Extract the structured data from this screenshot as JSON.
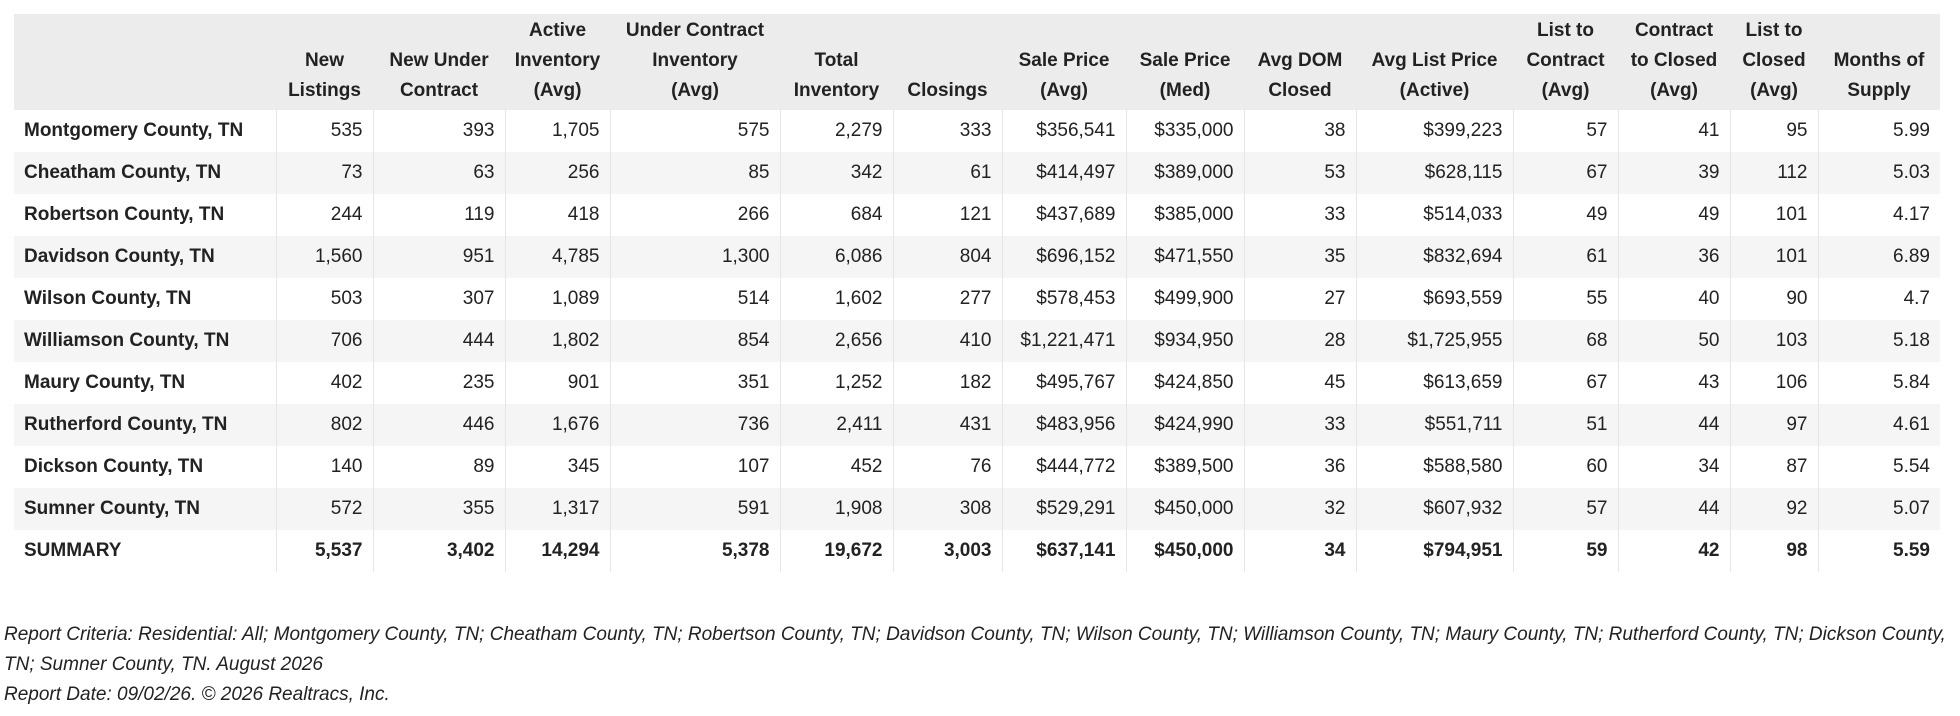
{
  "table": {
    "headers": [
      "",
      "New\nListings",
      "New Under\nContract",
      "Active\nInventory\n(Avg)",
      "Under Contract\nInventory\n(Avg)",
      "Total\nInventory",
      "Closings",
      "Sale Price\n(Avg)",
      "Sale Price\n(Med)",
      "Avg DOM\nClosed",
      "Avg List Price\n(Active)",
      "List to\nContract\n(Avg)",
      "Contract\nto Closed\n(Avg)",
      "List to\nClosed\n(Avg)",
      "Months of\nSupply"
    ],
    "rows": [
      [
        "Montgomery County, TN",
        "535",
        "393",
        "1,705",
        "575",
        "2,279",
        "333",
        "$356,541",
        "$335,000",
        "38",
        "$399,223",
        "57",
        "41",
        "95",
        "5.99"
      ],
      [
        "Cheatham County, TN",
        "73",
        "63",
        "256",
        "85",
        "342",
        "61",
        "$414,497",
        "$389,000",
        "53",
        "$628,115",
        "67",
        "39",
        "112",
        "5.03"
      ],
      [
        "Robertson County, TN",
        "244",
        "119",
        "418",
        "266",
        "684",
        "121",
        "$437,689",
        "$385,000",
        "33",
        "$514,033",
        "49",
        "49",
        "101",
        "4.17"
      ],
      [
        "Davidson County, TN",
        "1,560",
        "951",
        "4,785",
        "1,300",
        "6,086",
        "804",
        "$696,152",
        "$471,550",
        "35",
        "$832,694",
        "61",
        "36",
        "101",
        "6.89"
      ],
      [
        "Wilson County, TN",
        "503",
        "307",
        "1,089",
        "514",
        "1,602",
        "277",
        "$578,453",
        "$499,900",
        "27",
        "$693,559",
        "55",
        "40",
        "90",
        "4.7"
      ],
      [
        "Williamson County, TN",
        "706",
        "444",
        "1,802",
        "854",
        "2,656",
        "410",
        "$1,221,471",
        "$934,950",
        "28",
        "$1,725,955",
        "68",
        "50",
        "103",
        "5.18"
      ],
      [
        "Maury County, TN",
        "402",
        "235",
        "901",
        "351",
        "1,252",
        "182",
        "$495,767",
        "$424,850",
        "45",
        "$613,659",
        "67",
        "43",
        "106",
        "5.84"
      ],
      [
        "Rutherford County, TN",
        "802",
        "446",
        "1,676",
        "736",
        "2,411",
        "431",
        "$483,956",
        "$424,990",
        "33",
        "$551,711",
        "51",
        "44",
        "97",
        "4.61"
      ],
      [
        "Dickson County, TN",
        "140",
        "89",
        "345",
        "107",
        "452",
        "76",
        "$444,772",
        "$389,500",
        "36",
        "$588,580",
        "60",
        "34",
        "87",
        "5.54"
      ],
      [
        "Sumner County, TN",
        "572",
        "355",
        "1,317",
        "591",
        "1,908",
        "308",
        "$529,291",
        "$450,000",
        "32",
        "$607,932",
        "57",
        "44",
        "92",
        "5.07"
      ]
    ],
    "summary": [
      "SUMMARY",
      "5,537",
      "3,402",
      "14,294",
      "5,378",
      "19,672",
      "3,003",
      "$637,141",
      "$450,000",
      "34",
      "$794,951",
      "59",
      "42",
      "98",
      "5.59"
    ]
  },
  "footer": {
    "criteria": "Report Criteria: Residential: All; Montgomery County, TN; Cheatham County, TN; Robertson County, TN; Davidson County, TN; Wilson County, TN; Williamson County, TN; Maury County, TN; Rutherford County, TN; Dickson County, TN; Sumner County, TN. August 2026",
    "report_date": "Report Date: 09/02/26. © 2026 Realtracs, Inc."
  }
}
